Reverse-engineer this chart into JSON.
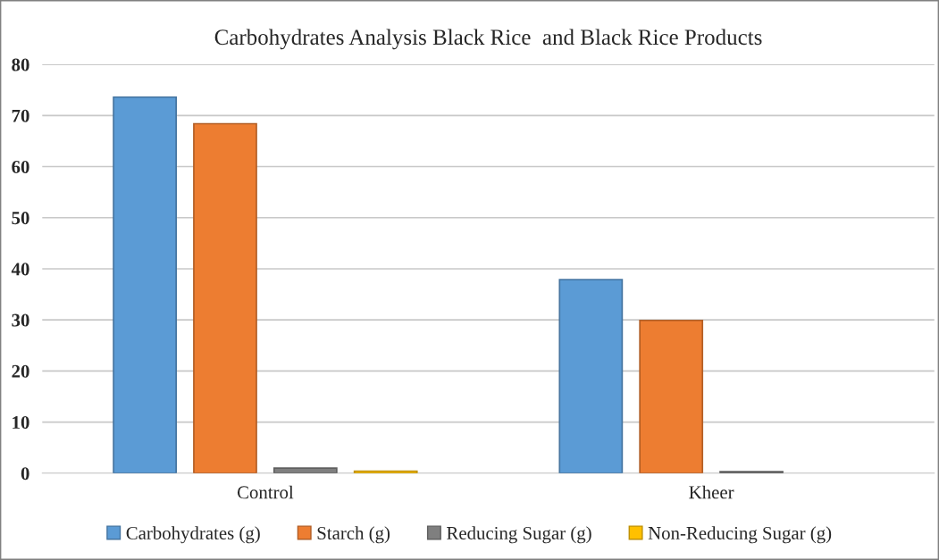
{
  "chart_data": {
    "type": "bar",
    "title": "Carbohydrates Analysis Black Rice  and Black Rice Products",
    "categories": [
      "Control",
      "Kheer"
    ],
    "series": [
      {
        "name": "Carbohydrates (g)",
        "color": "#5b9bd5",
        "values": [
          73.6,
          37.9
        ]
      },
      {
        "name": "Starch (g)",
        "color": "#ed7d31",
        "values": [
          68.4,
          29.9
        ]
      },
      {
        "name": "Reducing Sugar (g)",
        "color": "#7f7f7f",
        "values": [
          1.0,
          0.3
        ]
      },
      {
        "name": "Non-Reducing Sugar (g)",
        "color": "#ffc000",
        "values": [
          0.4,
          null
        ]
      }
    ],
    "ylim": [
      0,
      80
    ],
    "yticks": [
      0,
      10,
      20,
      30,
      40,
      50,
      60,
      70,
      80
    ],
    "grid": "y",
    "legend": "bottom"
  }
}
